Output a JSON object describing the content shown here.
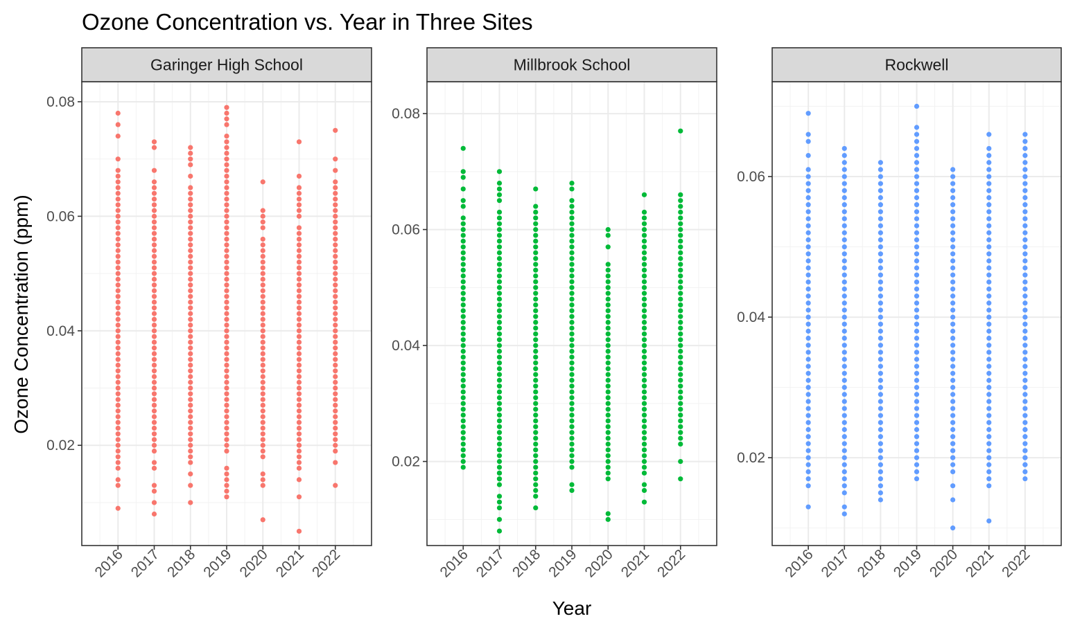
{
  "chart_data": {
    "type": "scatter",
    "title": "Ozone Concentration vs. Year in Three Sites",
    "xlabel": "Year",
    "ylabel": "Ozone Concentration (ppm)",
    "x_ticks": [
      "2016",
      "2017",
      "2018",
      "2019",
      "2020",
      "2021",
      "2022"
    ],
    "grid": true,
    "legend": "none",
    "facets": [
      {
        "name": "Garinger High School",
        "color": "#F8766D",
        "ylim": [
          0.0025,
          0.0835
        ],
        "y_ticks": [
          0.02,
          0.04,
          0.06,
          0.08
        ],
        "y_tick_labels": [
          "0.02",
          "0.04",
          "0.06",
          "0.08"
        ],
        "series": [
          {
            "x": "2016",
            "min": 0.016,
            "max": 0.068,
            "extra": [
              0.009,
              0.013,
              0.014,
              0.07,
              0.074,
              0.076,
              0.078
            ]
          },
          {
            "x": "2017",
            "min": 0.019,
            "max": 0.066,
            "extra": [
              0.008,
              0.01,
              0.012,
              0.013,
              0.016,
              0.017,
              0.068,
              0.072,
              0.073
            ]
          },
          {
            "x": "2018",
            "min": 0.017,
            "max": 0.065,
            "extra": [
              0.01,
              0.013,
              0.015,
              0.067,
              0.069,
              0.07,
              0.071,
              0.072
            ]
          },
          {
            "x": "2019",
            "min": 0.019,
            "max": 0.074,
            "extra": [
              0.011,
              0.012,
              0.013,
              0.014,
              0.015,
              0.016,
              0.076,
              0.077,
              0.078,
              0.079
            ]
          },
          {
            "x": "2020",
            "min": 0.018,
            "max": 0.056,
            "extra": [
              0.007,
              0.013,
              0.014,
              0.015,
              0.058,
              0.059,
              0.06,
              0.061,
              0.066
            ]
          },
          {
            "x": "2021",
            "min": 0.018,
            "max": 0.058,
            "extra": [
              0.005,
              0.011,
              0.014,
              0.016,
              0.017,
              0.02,
              0.06,
              0.061,
              0.062,
              0.063,
              0.064,
              0.065,
              0.067,
              0.073
            ]
          },
          {
            "x": "2022",
            "min": 0.021,
            "max": 0.066,
            "extra": [
              0.013,
              0.017,
              0.019,
              0.02,
              0.068,
              0.07,
              0.075
            ]
          }
        ]
      },
      {
        "name": "Millbrook School",
        "color": "#00BA38",
        "ylim": [
          0.0055,
          0.0855
        ],
        "y_ticks": [
          0.02,
          0.04,
          0.06,
          0.08
        ],
        "y_tick_labels": [
          "0.02",
          "0.04",
          "0.06",
          "0.08"
        ],
        "series": [
          {
            "x": "2016",
            "min": 0.019,
            "max": 0.062,
            "extra": [
              0.064,
              0.065,
              0.067,
              0.069,
              0.07,
              0.074
            ]
          },
          {
            "x": "2017",
            "min": 0.016,
            "max": 0.063,
            "extra": [
              0.008,
              0.01,
              0.012,
              0.013,
              0.014,
              0.017,
              0.018,
              0.065,
              0.066,
              0.067,
              0.068,
              0.07
            ]
          },
          {
            "x": "2018",
            "min": 0.014,
            "max": 0.063,
            "extra": [
              0.012,
              0.064,
              0.067
            ]
          },
          {
            "x": "2019",
            "min": 0.019,
            "max": 0.065,
            "extra": [
              0.015,
              0.016,
              0.067,
              0.068
            ]
          },
          {
            "x": "2020",
            "min": 0.017,
            "max": 0.054,
            "extra": [
              0.01,
              0.011,
              0.057,
              0.059,
              0.06
            ]
          },
          {
            "x": "2021",
            "min": 0.018,
            "max": 0.063,
            "extra": [
              0.013,
              0.015,
              0.016,
              0.066
            ]
          },
          {
            "x": "2022",
            "min": 0.023,
            "max": 0.066,
            "extra": [
              0.017,
              0.02,
              0.077
            ]
          }
        ]
      },
      {
        "name": "Rockwell",
        "color": "#619CFF",
        "ylim": [
          0.0075,
          0.0735
        ],
        "y_ticks": [
          0.02,
          0.04,
          0.06
        ],
        "y_tick_labels": [
          "0.02",
          "0.04",
          "0.06"
        ],
        "series": [
          {
            "x": "2016",
            "min": 0.016,
            "max": 0.061,
            "extra": [
              0.013,
              0.063,
              0.065,
              0.066,
              0.069
            ]
          },
          {
            "x": "2017",
            "min": 0.015,
            "max": 0.064,
            "extra": [
              0.012,
              0.013
            ]
          },
          {
            "x": "2018",
            "min": 0.017,
            "max": 0.062,
            "extra": [
              0.014,
              0.015,
              0.016
            ]
          },
          {
            "x": "2019",
            "min": 0.017,
            "max": 0.067,
            "extra": [
              0.07
            ]
          },
          {
            "x": "2020",
            "min": 0.018,
            "max": 0.061,
            "extra": [
              0.01,
              0.014,
              0.016,
              0.02,
              0.021,
              0.022
            ]
          },
          {
            "x": "2021",
            "min": 0.016,
            "max": 0.064,
            "extra": [
              0.011,
              0.066
            ]
          },
          {
            "x": "2022",
            "min": 0.017,
            "max": 0.066,
            "extra": [
              0.019,
              0.02,
              0.021,
              0.024
            ]
          }
        ]
      }
    ]
  }
}
